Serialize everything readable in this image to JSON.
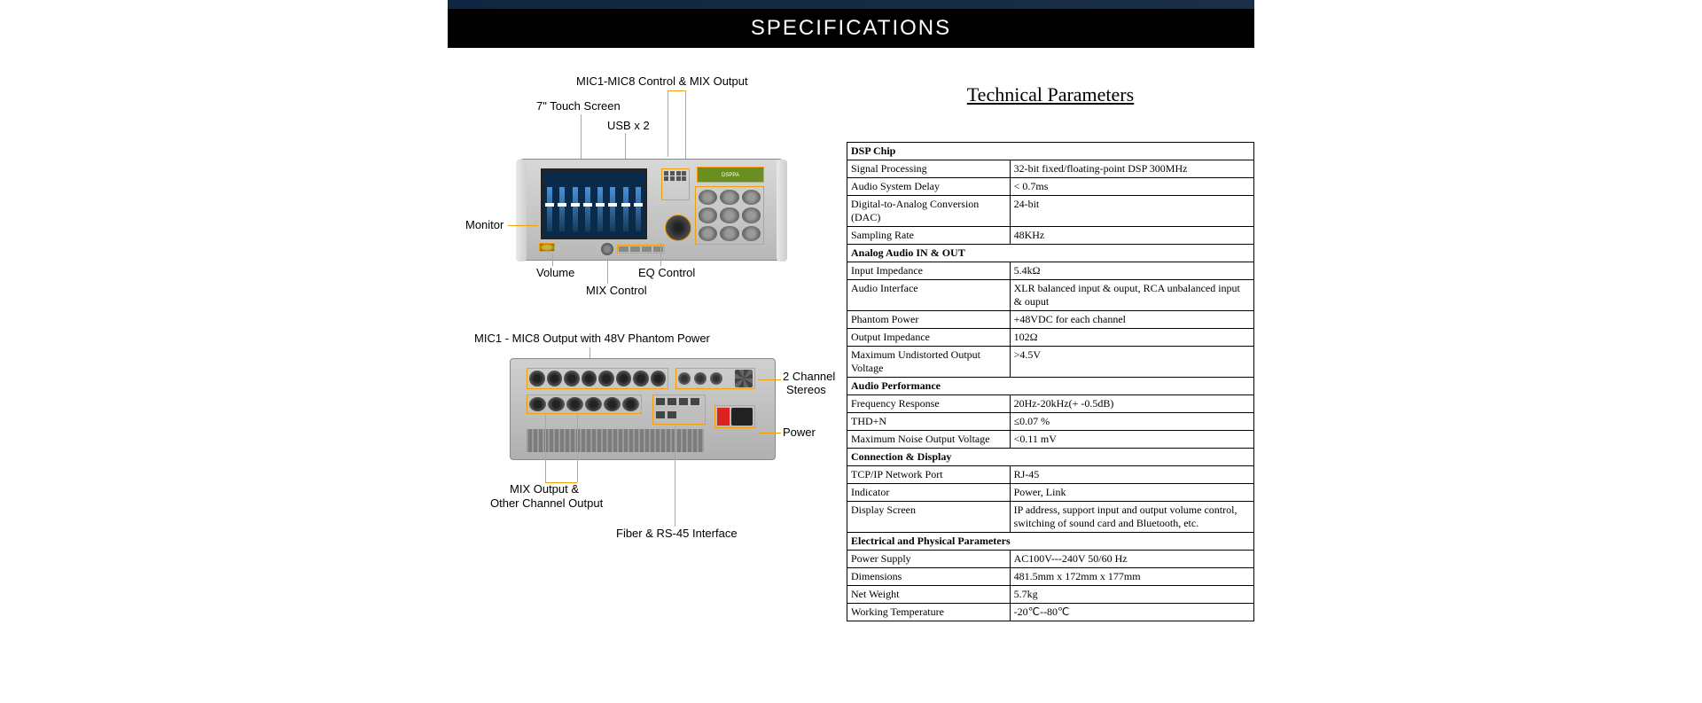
{
  "header": {
    "title": "SPECIFICATIONS"
  },
  "callouts": {
    "mic_mix": "MIC1-MIC8 Control & MIX Output",
    "touch": "7\" Touch Screen",
    "usb": "USB x 2",
    "monitor": "Monitor",
    "volume": "Volume",
    "eq": "EQ Control",
    "mix_ctrl": "MIX Control",
    "mic_out": "MIC1 - MIC8 Output with 48V Phantom Power",
    "stereo_a": "2 Channel",
    "stereo_b": "Stereos",
    "power": "Power",
    "mix_out_a": "MIX Output &",
    "mix_out_b": "Other Channel Output",
    "fiber": "Fiber & RS-45 Interface"
  },
  "tech": {
    "title": "Technical Parameters",
    "sections": [
      {
        "header": "DSP Chip",
        "rows": [
          [
            "Signal Processing",
            "32-bit fixed/floating-point DSP 300MHz"
          ],
          [
            "Audio System Delay",
            "< 0.7ms"
          ],
          [
            "Digital-to-Analog Conversion (DAC)",
            "24-bit"
          ],
          [
            "Sampling Rate",
            "48KHz"
          ]
        ]
      },
      {
        "header": "Analog Audio IN & OUT",
        "rows": [
          [
            "Input Impedance",
            "5.4kΩ"
          ],
          [
            "Audio Interface",
            "XLR balanced input & ouput, RCA unbalanced input & ouput"
          ],
          [
            "Phantom Power",
            "+48VDC for each channel"
          ],
          [
            "Output Impedance",
            "102Ω"
          ],
          [
            "Maximum Undistorted Output Voltage",
            ">4.5V"
          ]
        ]
      },
      {
        "header": "Audio Performance",
        "rows": [
          [
            "Frequency Response",
            "20Hz-20kHz(+ -0.5dB)"
          ],
          [
            "THD+N",
            "≤0.07 %"
          ],
          [
            "Maximum Noise Output Voltage",
            "<0.11 mV"
          ]
        ]
      },
      {
        "header": "Connection & Display",
        "rows": [
          [
            "TCP/IP Network Port",
            "RJ-45"
          ],
          [
            "Indicator",
            "Power, Link"
          ],
          [
            "Display Screen",
            "IP address, support input and output volume control, switching of sound card and Bluetooth, etc."
          ]
        ]
      },
      {
        "header": "Electrical and Physical Parameters",
        "rows": [
          [
            "Power Supply",
            "AC100V---240V    50/60 Hz"
          ],
          [
            "Dimensions",
            "481.5mm x 172mm x 177mm"
          ],
          [
            "Net Weight",
            "5.7kg"
          ],
          [
            "Working Temperature",
            "-20℃--80℃"
          ]
        ]
      }
    ]
  }
}
